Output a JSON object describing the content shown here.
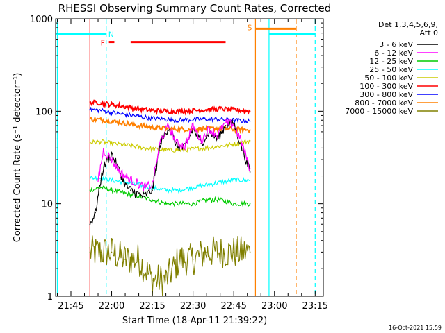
{
  "chart_data": {
    "type": "line",
    "title": "RHESSI Observing Summary Count Rates, Corrected",
    "xlabel": "Start Time (18-Apr-11 21:39:22)",
    "ylabel": "Corrected Count Rate (s⁻¹ detector⁻¹)",
    "yscale": "log",
    "ylim": [
      1,
      1000
    ],
    "xlim": [
      "21:39:22",
      "23:18:00"
    ],
    "xticks": [
      "21:45",
      "22:00",
      "22:15",
      "22:30",
      "22:45",
      "23:00",
      "23:15"
    ],
    "yticks": [
      "1",
      "10",
      "100",
      "1000"
    ],
    "timestamp": "16-Oct-2021 15:59",
    "legend": {
      "placement": "right",
      "header": [
        "Det 1,3,4,5,6,9,",
        "Att 0"
      ]
    },
    "series": [
      {
        "name": "3 - 6 keV",
        "color": "#000000",
        "x": [
          "21:52",
          "21:54",
          "21:56",
          "21:57",
          "22:00",
          "22:03",
          "22:05",
          "22:07",
          "22:09",
          "22:12",
          "22:15",
          "22:18",
          "22:21",
          "22:24",
          "22:27",
          "22:30",
          "22:33",
          "22:36",
          "22:39",
          "22:42",
          "22:45",
          "22:48",
          "22:51"
        ],
        "values": [
          6,
          8,
          18,
          25,
          35,
          22,
          16,
          14,
          13,
          12,
          14,
          45,
          68,
          42,
          40,
          65,
          45,
          60,
          50,
          70,
          75,
          40,
          22
        ]
      },
      {
        "name": "6 - 12 keV",
        "color": "#ff00ff",
        "x": [
          "21:55",
          "21:57",
          "22:00",
          "22:03",
          "22:05",
          "22:07",
          "22:09",
          "22:12",
          "22:15",
          "22:18",
          "22:21",
          "22:24",
          "22:27",
          "22:30",
          "22:33",
          "22:36",
          "22:39",
          "22:42",
          "22:45",
          "22:48",
          "22:51"
        ],
        "values": [
          18,
          38,
          30,
          22,
          20,
          18,
          17,
          15,
          16,
          48,
          70,
          45,
          42,
          70,
          48,
          65,
          55,
          75,
          72,
          45,
          24
        ]
      },
      {
        "name": "12 - 25 keV",
        "color": "#00cc00",
        "x": [
          "21:52",
          "21:56",
          "22:00",
          "22:05",
          "22:10",
          "22:15",
          "22:20",
          "22:25",
          "22:30",
          "22:35",
          "22:40",
          "22:45",
          "22:51"
        ],
        "values": [
          14,
          15,
          14,
          13,
          12,
          11,
          10,
          10,
          10,
          11,
          11,
          10,
          10
        ]
      },
      {
        "name": "25 - 50 keV",
        "color": "#00ffff",
        "x": [
          "21:52",
          "21:56",
          "22:00",
          "22:05",
          "22:10",
          "22:15",
          "22:20",
          "22:25",
          "22:30",
          "22:35",
          "22:40",
          "22:45",
          "22:51"
        ],
        "values": [
          19,
          19,
          18,
          17,
          16,
          15,
          14,
          14,
          15,
          16,
          17,
          18,
          18
        ]
      },
      {
        "name": "50 - 100 keV",
        "color": "#cccc00",
        "x": [
          "21:52",
          "21:56",
          "22:00",
          "22:05",
          "22:10",
          "22:15",
          "22:20",
          "22:25",
          "22:30",
          "22:35",
          "22:40",
          "22:45",
          "22:51"
        ],
        "values": [
          46,
          47,
          45,
          43,
          41,
          39,
          38,
          38,
          39,
          40,
          42,
          44,
          48
        ]
      },
      {
        "name": "100 - 300 keV",
        "color": "#ff0000",
        "x": [
          "21:52",
          "21:56",
          "22:00",
          "22:05",
          "22:10",
          "22:15",
          "22:20",
          "22:25",
          "22:30",
          "22:35",
          "22:40",
          "22:45",
          "22:51"
        ],
        "values": [
          125,
          123,
          118,
          112,
          106,
          102,
          100,
          100,
          102,
          104,
          106,
          104,
          100
        ]
      },
      {
        "name": "300 - 800 keV",
        "color": "#0000ff",
        "x": [
          "21:52",
          "21:56",
          "22:00",
          "22:05",
          "22:10",
          "22:15",
          "22:20",
          "22:25",
          "22:30",
          "22:35",
          "22:40",
          "22:45",
          "22:51"
        ],
        "values": [
          105,
          102,
          97,
          92,
          88,
          84,
          82,
          80,
          81,
          82,
          82,
          80,
          78
        ]
      },
      {
        "name": "800 - 7000 keV",
        "color": "#ff8000",
        "x": [
          "21:52",
          "21:56",
          "22:00",
          "22:05",
          "22:10",
          "22:15",
          "22:20",
          "22:25",
          "22:30",
          "22:35",
          "22:40",
          "22:45",
          "22:51"
        ],
        "values": [
          82,
          81,
          78,
          74,
          70,
          67,
          65,
          64,
          64,
          65,
          65,
          64,
          63
        ]
      },
      {
        "name": "7000 - 15000 keV",
        "color": "#808000",
        "x": [
          "21:52",
          "21:56",
          "22:00",
          "22:05",
          "22:10",
          "22:15",
          "22:20",
          "22:25",
          "22:30",
          "22:35",
          "22:40",
          "22:45",
          "22:51"
        ],
        "values": [
          3,
          3,
          3,
          2.5,
          2.5,
          1.5,
          1.5,
          2.5,
          2.5,
          3,
          3,
          3,
          3
        ]
      }
    ],
    "events": {
      "saa_flag": {
        "label": "S",
        "color": "#ff8000",
        "x": [
          "22:53",
          "23:08"
        ],
        "y": 780
      },
      "night_flag": {
        "label": "N",
        "color": "#00ffff",
        "x": [
          "21:39:22",
          "21:58"
        ],
        "y": 680
      },
      "flare_flag": {
        "label": "F",
        "color": "#ff0000",
        "segments": [
          [
            "21:59",
            "22:01"
          ],
          [
            "22:07",
            "22:42"
          ]
        ],
        "y": 560
      },
      "vlines": [
        {
          "t": "21:40",
          "color": "#00ffff",
          "dash": false
        },
        {
          "t": "21:52",
          "color": "#ff0000",
          "dash": false
        },
        {
          "t": "21:58",
          "color": "#00ffff",
          "dash": true
        },
        {
          "t": "22:53",
          "color": "#ff8000",
          "dash": false
        },
        {
          "t": "22:58",
          "color": "#00ffff",
          "dash": false
        },
        {
          "t": "23:08",
          "color": "#ff8000",
          "dash": true
        },
        {
          "t": "23:15",
          "color": "#00ffff",
          "dash": true
        }
      ],
      "night_second": {
        "color": "#00ffff",
        "x": [
          "22:58",
          "23:15"
        ],
        "y": 680
      }
    }
  }
}
